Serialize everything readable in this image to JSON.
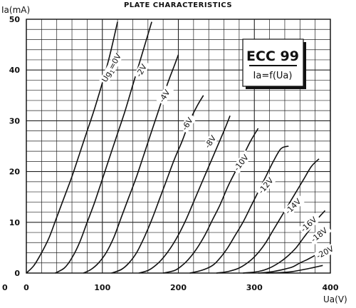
{
  "chart_data": {
    "type": "line",
    "title": "PLATE CHARACTERISTICS",
    "ylabel": "Ia(mA)",
    "xlabel": "Ua(V)",
    "xlim": [
      0,
      400
    ],
    "ylim": [
      0,
      50
    ],
    "x_ticks": [
      0,
      100,
      200,
      300,
      400
    ],
    "x_tick_labels": [
      "0",
      "100",
      "200",
      "300",
      "400"
    ],
    "y_ticks": [
      0,
      10,
      20,
      30,
      40,
      50
    ],
    "y_tick_labels": [
      "0",
      "10",
      "20",
      "30",
      "40",
      "50"
    ],
    "stray_label": "0",
    "grid": true,
    "legend_box": {
      "title": "ECC 99",
      "subtitle": "Ia=f(Ua)"
    },
    "series": [
      {
        "name": "Ug1=0V",
        "label_main": "Ug",
        "label_sub": "1",
        "label_suffix": "=0V",
        "points": [
          [
            0,
            0
          ],
          [
            10,
            1.5
          ],
          [
            20,
            4
          ],
          [
            30,
            7
          ],
          [
            40,
            11
          ],
          [
            50,
            15
          ],
          [
            60,
            19
          ],
          [
            70,
            23.5
          ],
          [
            80,
            28
          ],
          [
            90,
            32.5
          ],
          [
            100,
            37.5
          ],
          [
            110,
            43
          ],
          [
            120,
            49.5
          ]
        ]
      },
      {
        "name": "-2V",
        "label": "-2V",
        "points": [
          [
            38,
            0
          ],
          [
            50,
            1
          ],
          [
            60,
            3
          ],
          [
            70,
            6
          ],
          [
            80,
            10
          ],
          [
            90,
            14
          ],
          [
            100,
            18.5
          ],
          [
            110,
            23
          ],
          [
            120,
            27.5
          ],
          [
            130,
            32
          ],
          [
            140,
            37
          ],
          [
            150,
            42
          ],
          [
            160,
            47
          ],
          [
            165,
            49.5
          ]
        ]
      },
      {
        "name": "-4V",
        "label": "-4V",
        "points": [
          [
            75,
            0
          ],
          [
            85,
            0.7
          ],
          [
            95,
            2
          ],
          [
            105,
            4
          ],
          [
            115,
            7
          ],
          [
            125,
            11
          ],
          [
            135,
            15
          ],
          [
            145,
            19
          ],
          [
            155,
            23.5
          ],
          [
            165,
            28
          ],
          [
            175,
            32.5
          ],
          [
            185,
            37
          ],
          [
            195,
            41
          ],
          [
            200,
            43
          ]
        ]
      },
      {
        "name": "-6V",
        "label": "-6V",
        "points": [
          [
            112,
            0
          ],
          [
            125,
            0.7
          ],
          [
            135,
            2
          ],
          [
            145,
            4
          ],
          [
            155,
            7
          ],
          [
            165,
            10.5
          ],
          [
            175,
            14.5
          ],
          [
            185,
            18.5
          ],
          [
            195,
            22.5
          ],
          [
            205,
            26
          ],
          [
            215,
            30
          ],
          [
            225,
            33
          ],
          [
            233,
            35
          ]
        ]
      },
      {
        "name": "-8V",
        "label": "-8V",
        "points": [
          [
            148,
            0
          ],
          [
            160,
            0.5
          ],
          [
            170,
            1.5
          ],
          [
            180,
            3
          ],
          [
            190,
            5
          ],
          [
            200,
            7.5
          ],
          [
            210,
            10.5
          ],
          [
            220,
            14
          ],
          [
            230,
            17.5
          ],
          [
            240,
            21
          ],
          [
            250,
            24.5
          ],
          [
            260,
            28
          ],
          [
            268,
            31
          ]
        ]
      },
      {
        "name": "-10V",
        "label": "-10V",
        "points": [
          [
            180,
            0
          ],
          [
            195,
            0.5
          ],
          [
            205,
            1.5
          ],
          [
            215,
            3
          ],
          [
            225,
            5
          ],
          [
            235,
            7.5
          ],
          [
            245,
            10.5
          ],
          [
            255,
            13.5
          ],
          [
            265,
            17
          ],
          [
            275,
            20
          ],
          [
            285,
            23
          ],
          [
            295,
            26
          ],
          [
            305,
            28.5
          ]
        ]
      },
      {
        "name": "-12V",
        "label": "-12V",
        "points": [
          [
            215,
            0
          ],
          [
            230,
            0.5
          ],
          [
            245,
            1.5
          ],
          [
            255,
            3
          ],
          [
            265,
            5
          ],
          [
            275,
            7.5
          ],
          [
            285,
            10
          ],
          [
            295,
            13
          ],
          [
            305,
            16
          ],
          [
            315,
            19
          ],
          [
            325,
            22
          ],
          [
            335,
            24.5
          ],
          [
            345,
            25
          ]
        ]
      },
      {
        "name": "-14V",
        "label": "-14V",
        "points": [
          [
            250,
            0
          ],
          [
            265,
            0.3
          ],
          [
            280,
            1
          ],
          [
            295,
            2.5
          ],
          [
            305,
            4
          ],
          [
            315,
            6
          ],
          [
            325,
            8.5
          ],
          [
            335,
            11
          ],
          [
            345,
            13.5
          ],
          [
            355,
            16
          ],
          [
            365,
            18.5
          ],
          [
            375,
            21
          ],
          [
            385,
            22.5
          ]
        ]
      },
      {
        "name": "-16V",
        "label": "-16V",
        "points": [
          [
            285,
            0
          ],
          [
            305,
            0.3
          ],
          [
            320,
            1
          ],
          [
            335,
            2.3
          ],
          [
            345,
            3.5
          ],
          [
            355,
            5
          ],
          [
            365,
            7
          ],
          [
            375,
            9
          ],
          [
            385,
            11
          ],
          [
            393,
            12.3
          ]
        ]
      },
      {
        "name": "-18V",
        "label": "-18V",
        "points": [
          [
            305,
            0
          ],
          [
            320,
            0.2
          ],
          [
            335,
            0.6
          ],
          [
            350,
            1.2
          ],
          [
            360,
            2
          ],
          [
            370,
            2.7
          ],
          [
            380,
            3.5
          ],
          [
            390,
            4.5
          ]
        ]
      },
      {
        "name": "-20V",
        "label": "-20V",
        "points": [
          [
            315,
            0
          ],
          [
            335,
            0.1
          ],
          [
            350,
            0.3
          ],
          [
            365,
            0.7
          ],
          [
            378,
            1.1
          ],
          [
            390,
            1.5
          ]
        ]
      }
    ]
  }
}
